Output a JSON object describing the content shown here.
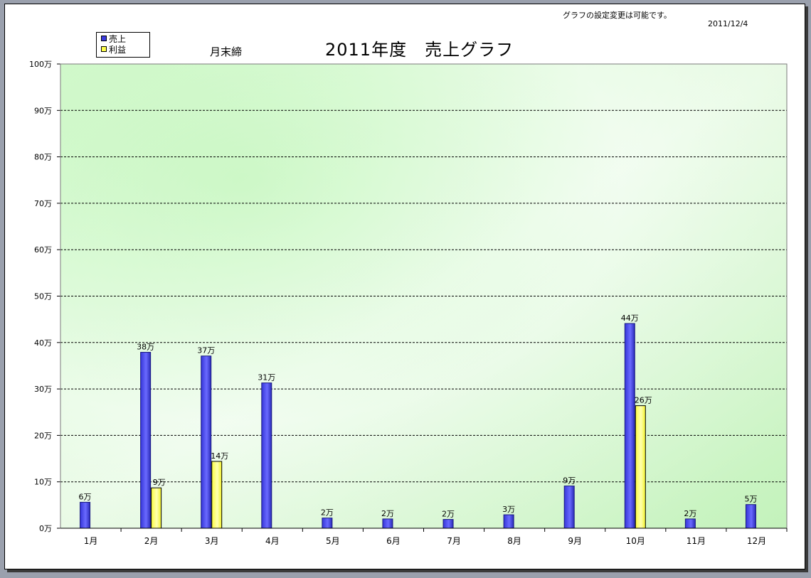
{
  "header": {
    "note": "グラフの設定変更は可能です。",
    "date": "2011/12/4"
  },
  "chart_data": {
    "type": "bar",
    "title": "2011年度　売上グラフ",
    "subtitle": "月末締",
    "categories": [
      "1月",
      "2月",
      "3月",
      "4月",
      "5月",
      "6月",
      "7月",
      "8月",
      "9月",
      "10月",
      "11月",
      "12月"
    ],
    "series": [
      {
        "name": "売上",
        "color": "#3b3be0",
        "values": [
          6,
          38,
          37,
          31,
          2,
          2,
          2,
          3,
          9,
          44,
          2,
          5
        ],
        "bar_values": [
          5.6,
          37.9,
          37.1,
          31.3,
          2.2,
          2.0,
          1.9,
          2.9,
          9.1,
          44.1,
          2.0,
          5.1
        ],
        "labels": [
          "6万",
          "38万",
          "37万",
          "31万",
          "2万",
          "2万",
          "2万",
          "3万",
          "9万",
          "44万",
          "2万",
          "5万"
        ]
      },
      {
        "name": "利益",
        "color": "#ffff4a",
        "values": [
          null,
          9,
          14,
          null,
          null,
          null,
          null,
          null,
          null,
          26,
          null,
          null
        ],
        "bar_values": [
          null,
          8.7,
          14.4,
          null,
          null,
          null,
          null,
          null,
          null,
          26.4,
          null,
          null
        ],
        "labels": [
          null,
          "9万",
          "14万",
          null,
          null,
          null,
          null,
          null,
          null,
          "26万",
          null,
          null
        ]
      }
    ],
    "ylim": [
      0,
      100
    ],
    "yticks": [
      0,
      10,
      20,
      30,
      40,
      50,
      60,
      70,
      80,
      90,
      100
    ],
    "ytick_labels": [
      "0万",
      "10万",
      "20万",
      "30万",
      "40万",
      "50万",
      "60万",
      "70万",
      "80万",
      "90万",
      "100万"
    ],
    "unit": "万",
    "grid": true,
    "legend_position": "top-left"
  }
}
